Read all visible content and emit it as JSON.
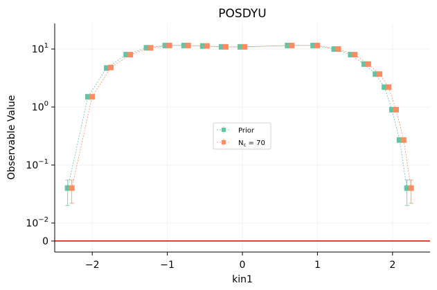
{
  "chart_data": {
    "type": "scatter",
    "title": "POSDYU",
    "xlabel": "kin1",
    "ylabel": "Observable Value",
    "xlim": [
      -2.5,
      2.5
    ],
    "yscale": "symlog",
    "x_ticks": [
      {
        "value": -2,
        "label": "−2"
      },
      {
        "value": -1,
        "label": "−1"
      },
      {
        "value": 0,
        "label": "0"
      },
      {
        "value": 1,
        "label": "1"
      },
      {
        "value": 2,
        "label": "2"
      }
    ],
    "y_ticks": [
      {
        "value": 0,
        "base": "0",
        "exp": ""
      },
      {
        "value": 0.01,
        "base": "10",
        "exp": "−2"
      },
      {
        "value": 0.1,
        "base": "10",
        "exp": "−1"
      },
      {
        "value": 1,
        "base": "10",
        "exp": "0"
      },
      {
        "value": 10,
        "base": "10",
        "exp": "1"
      }
    ],
    "grid": true,
    "legend_position": "center",
    "reference_line": {
      "y": 0,
      "color": "#e00000"
    },
    "x": [
      -2.3,
      -2.03,
      -1.78,
      -1.52,
      -1.25,
      -1.0,
      -0.75,
      -0.5,
      -0.25,
      0.0,
      0.63,
      0.97,
      1.25,
      1.47,
      1.65,
      1.8,
      1.92,
      2.02,
      2.12,
      2.22
    ],
    "series": [
      {
        "name": "Prior",
        "color": "#66c2a5",
        "y": [
          0.04,
          1.5,
          4.7,
          8.0,
          10.5,
          11.5,
          11.5,
          11.3,
          10.9,
          10.9,
          11.5,
          11.5,
          10.0,
          8.0,
          5.5,
          3.7,
          2.2,
          0.9,
          0.27,
          0.04
        ],
        "err_low": [
          0.02,
          0.05,
          0.1,
          0.2,
          0.2,
          0.2,
          0.2,
          0.2,
          0.2,
          0.2,
          0.2,
          0.2,
          0.2,
          0.2,
          0.1,
          0.1,
          0.05,
          0.03,
          0.02,
          0.02
        ],
        "err_high": [
          0.015,
          0.05,
          0.1,
          0.2,
          0.2,
          0.2,
          0.2,
          0.2,
          0.2,
          0.2,
          0.2,
          0.2,
          0.2,
          0.2,
          0.1,
          0.1,
          0.05,
          0.03,
          0.02,
          0.015
        ]
      },
      {
        "name": "N_c = 70",
        "label_main": "N",
        "label_sub": "c",
        "label_rest": " = 70",
        "color": "#fc8d62",
        "y": [
          0.04,
          1.5,
          4.8,
          8.0,
          10.5,
          11.5,
          11.5,
          11.3,
          10.9,
          10.9,
          11.5,
          11.5,
          10.0,
          8.0,
          5.5,
          3.7,
          2.2,
          0.9,
          0.27,
          0.04
        ],
        "err_low": [
          0.018,
          0.05,
          0.1,
          0.2,
          0.2,
          0.2,
          0.2,
          0.2,
          0.2,
          0.2,
          0.2,
          0.2,
          0.2,
          0.2,
          0.1,
          0.1,
          0.05,
          0.03,
          0.02,
          0.018
        ],
        "err_high": [
          0.015,
          0.05,
          0.1,
          0.2,
          0.2,
          0.2,
          0.2,
          0.2,
          0.2,
          0.2,
          0.2,
          0.2,
          0.2,
          0.2,
          0.1,
          0.1,
          0.05,
          0.03,
          0.02,
          0.015
        ]
      }
    ]
  }
}
